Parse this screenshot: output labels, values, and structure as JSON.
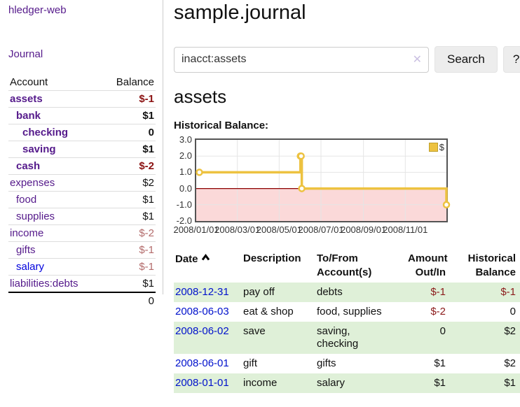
{
  "app": {
    "title": "hledger-web"
  },
  "sidebar": {
    "journal_link": "Journal",
    "accounts_table": {
      "headers": [
        "Account",
        "Balance"
      ],
      "rows": [
        {
          "name": "assets",
          "indent": 1,
          "bold": true,
          "link_color": "purple",
          "balance": "$-1",
          "balance_style": "neg-strong"
        },
        {
          "name": "bank",
          "indent": 2,
          "bold": true,
          "link_color": "purple",
          "balance": "$1",
          "balance_style": "pos"
        },
        {
          "name": "checking",
          "indent": 3,
          "bold": true,
          "link_color": "purple",
          "balance": "0",
          "balance_style": "pos"
        },
        {
          "name": "saving",
          "indent": 3,
          "bold": true,
          "link_color": "purple",
          "balance": "$1",
          "balance_style": "pos"
        },
        {
          "name": "cash",
          "indent": 2,
          "bold": true,
          "link_color": "purple",
          "balance": "$-2",
          "balance_style": "neg-strong"
        },
        {
          "name": "expenses",
          "indent": 1,
          "bold": false,
          "link_color": "purple",
          "balance": "$2",
          "balance_style": "pos"
        },
        {
          "name": "food",
          "indent": 2,
          "bold": false,
          "link_color": "purple",
          "balance": "$1",
          "balance_style": "pos"
        },
        {
          "name": "supplies",
          "indent": 2,
          "bold": false,
          "link_color": "purple",
          "balance": "$1",
          "balance_style": "pos"
        },
        {
          "name": "income",
          "indent": 1,
          "bold": false,
          "link_color": "purple",
          "balance": "$-2",
          "balance_style": "neg-faded"
        },
        {
          "name": "gifts",
          "indent": 2,
          "bold": false,
          "link_color": "purple",
          "balance": "$-1",
          "balance_style": "neg-faded"
        },
        {
          "name": "salary",
          "indent": 2,
          "bold": false,
          "link_color": "blue",
          "balance": "$-1",
          "balance_style": "neg-faded"
        },
        {
          "name": "liabilities:debts",
          "indent": 1,
          "bold": false,
          "link_color": "purple",
          "balance": "$1",
          "balance_style": "pos"
        }
      ],
      "total": "0"
    }
  },
  "header": {
    "title": "sample.journal"
  },
  "search": {
    "value": "inacct:assets",
    "clear_icon": "✕",
    "button_label": "Search",
    "help_label": "?"
  },
  "account_page": {
    "title": "assets",
    "chart_label": "Historical Balance:"
  },
  "chart_data": {
    "type": "line",
    "step": true,
    "title": "Historical Balance",
    "series": [
      {
        "name": "$",
        "color": "#edc240",
        "points": [
          [
            "2008-01-01",
            1
          ],
          [
            "2008-06-01",
            2
          ],
          [
            "2008-06-02",
            2
          ],
          [
            "2008-06-03",
            0
          ],
          [
            "2008-12-31",
            -1
          ]
        ]
      }
    ],
    "x_range": [
      "2008-01-01",
      "2008-12-31"
    ],
    "ylim": [
      -2,
      3
    ],
    "yticks": [
      "3.0",
      "2.0",
      "1.0",
      "0.0",
      "-1.0",
      "-2.0"
    ],
    "xticks": [
      "2008/01/01",
      "2008/03/01",
      "2008/05/01",
      "2008/07/01",
      "2008/09/01",
      "2008/11/01"
    ],
    "legend": [
      {
        "label": "$",
        "color": "#edc240"
      }
    ],
    "legend_position": "top-right",
    "grid": true,
    "grid_color": "#e5e5e5",
    "border_color": "#545454",
    "negative_region_fill": "#fbd9d9",
    "zero_line_color": "#8b0000"
  },
  "register": {
    "headers": {
      "date": {
        "label": "Date",
        "sort": "asc"
      },
      "description": {
        "label": "Description"
      },
      "tofrom_lines": [
        "To/From",
        "Account(s)"
      ],
      "amount_lines": [
        "Amount",
        "Out/In"
      ],
      "balance_lines": [
        "Historical",
        "Balance"
      ]
    },
    "rows": [
      {
        "date": "2008-12-31",
        "description": "pay off",
        "tofrom": [
          "debts"
        ],
        "amount": "$-1",
        "amount_neg": true,
        "balance": "$-1",
        "balance_neg": true
      },
      {
        "date": "2008-06-03",
        "description": "eat & shop",
        "tofrom": [
          "food, supplies"
        ],
        "amount": "$-2",
        "amount_neg": true,
        "balance": "0",
        "balance_neg": false
      },
      {
        "date": "2008-06-02",
        "description": "save",
        "tofrom": [
          "saving,",
          "checking"
        ],
        "amount": "0",
        "amount_neg": false,
        "balance": "$2",
        "balance_neg": false
      },
      {
        "date": "2008-06-01",
        "description": "gift",
        "tofrom": [
          "gifts"
        ],
        "amount": "$1",
        "amount_neg": false,
        "balance": "$2",
        "balance_neg": false
      },
      {
        "date": "2008-01-01",
        "description": "income",
        "tofrom": [
          "salary"
        ],
        "amount": "$1",
        "amount_neg": false,
        "balance": "$1",
        "balance_neg": false
      }
    ]
  },
  "colors": {
    "link_visited": "#551a8b",
    "link_unvisited": "#0000dd",
    "negative_strong": "#8b1212",
    "negative_faded": "#b36b6b",
    "row_stripe_green": "#dff0d8",
    "series_gold": "#edc240"
  }
}
